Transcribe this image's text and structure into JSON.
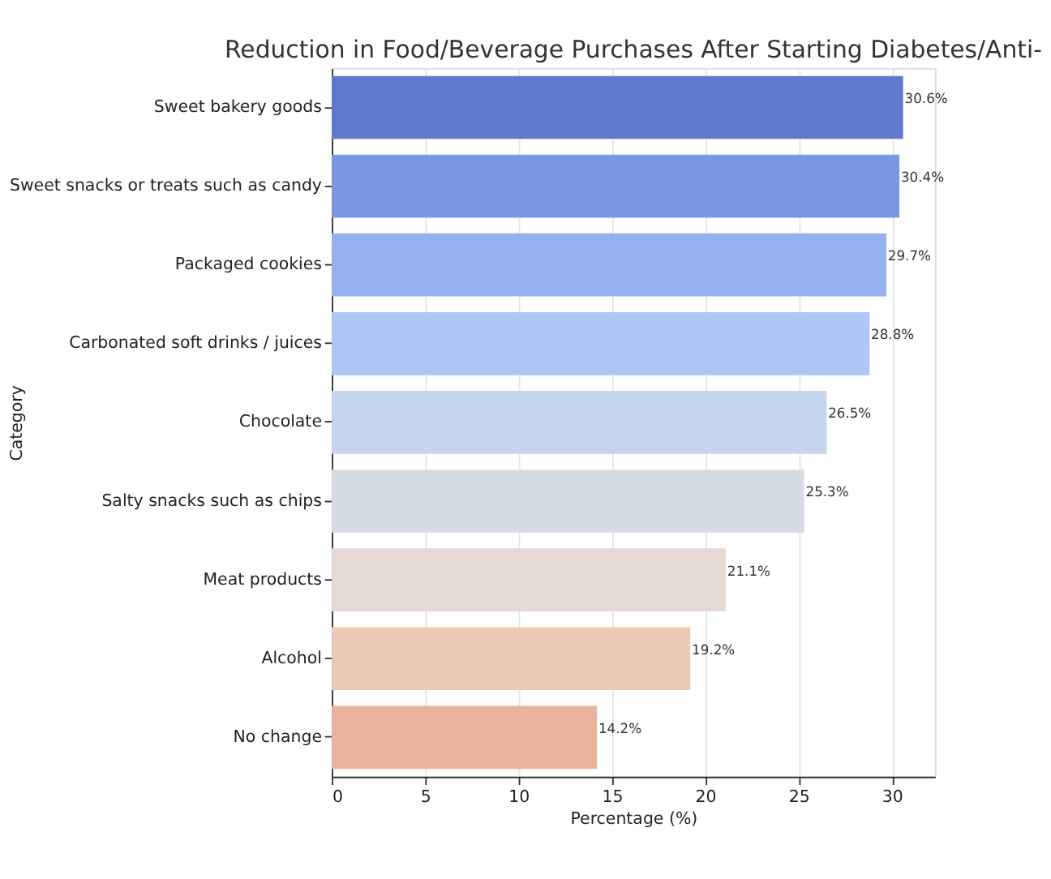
{
  "chart_data": {
    "type": "bar",
    "orientation": "horizontal",
    "title": "Reduction in Food/Beverage Purchases After Starting Diabetes/Anti-",
    "xlabel": "Percentage (%)",
    "ylabel": "Category",
    "categories": [
      "Sweet bakery goods",
      "Sweet snacks or treats such as candy",
      "Packaged cookies",
      "Carbonated soft drinks / juices",
      "Chocolate",
      "Salty snacks such as chips",
      "Meat products",
      "Alcohol",
      "No change"
    ],
    "values": [
      30.6,
      30.4,
      29.7,
      28.8,
      26.5,
      25.3,
      21.1,
      19.2,
      14.2
    ],
    "value_labels": [
      "30.6%",
      "30.4%",
      "29.7%",
      "28.8%",
      "26.5%",
      "25.3%",
      "21.1%",
      "19.2%",
      "14.2%"
    ],
    "colors": [
      "#6079d0",
      "#7b97e2",
      "#94b0ee",
      "#adc6f5",
      "#c5d5ee",
      "#d6dce6",
      "#e5d9d3",
      "#ecc9b5",
      "#eab39b"
    ],
    "xlim": [
      0,
      32.3
    ],
    "xticks": [
      0,
      5,
      10,
      15,
      20,
      25,
      30
    ],
    "grid": "x",
    "legend": false
  }
}
